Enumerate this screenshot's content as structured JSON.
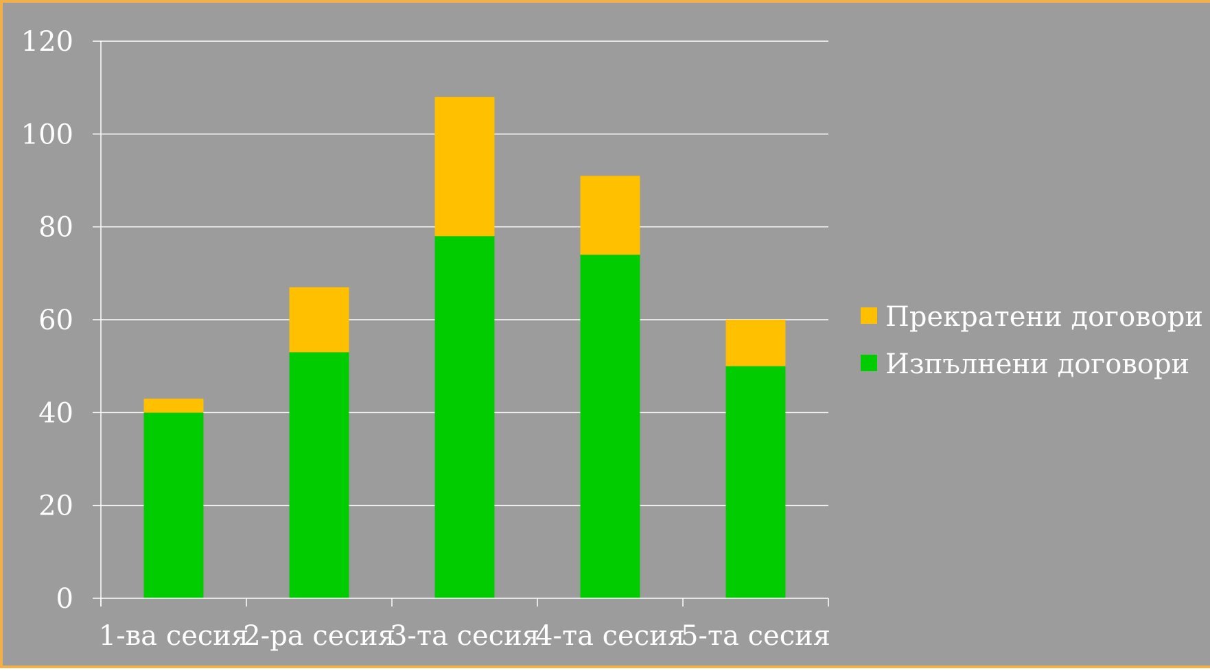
{
  "chart_data": {
    "type": "bar",
    "stacked": true,
    "categories": [
      "1-ва сесия",
      "2-ра сесия",
      "3-та сесия",
      "4-та сесия",
      "5-та сесия"
    ],
    "series": [
      {
        "name": "Изпълнени договори",
        "values": [
          40,
          53,
          78,
          74,
          50
        ],
        "color": "#00cc00"
      },
      {
        "name": "Прекратени договори",
        "values": [
          3,
          14,
          30,
          17,
          10
        ],
        "color": "#ffc000"
      }
    ],
    "title": "",
    "xlabel": "",
    "ylabel": "",
    "ylim": [
      0,
      120
    ],
    "yticks": [
      0,
      20,
      40,
      60,
      80,
      100,
      120
    ],
    "grid": true,
    "legend_position": "right",
    "legend_order": [
      "Прекратени договори",
      "Изпълнени договори"
    ],
    "background_color": "#9c9c9c",
    "gridline_color": "#ffffff",
    "text_color": "#ffffff"
  }
}
